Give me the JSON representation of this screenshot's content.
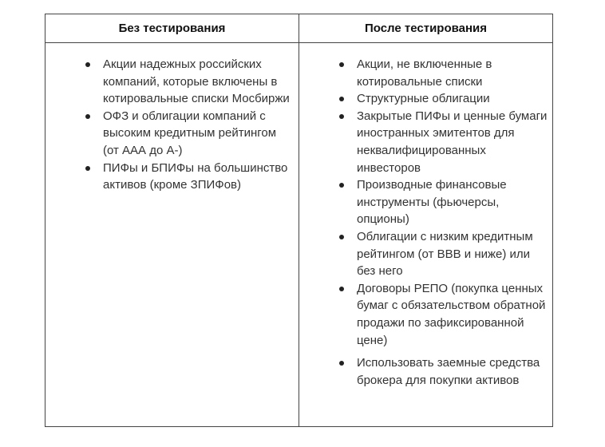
{
  "table": {
    "headers": [
      "Без тестирования",
      "После тестирования"
    ],
    "left_items": [
      "Акции надежных российских компаний, которые включены в котировальные списки Мосбиржи",
      "ОФЗ и облигации компаний с высоким кредитным рейтингом (от ААА до А-)",
      "ПИФы и БПИФы на большинство активов (кроме ЗПИФов)"
    ],
    "right_items": [
      "Акции, не включенные в котировальные списки",
      "Структурные облигации",
      "Закрытые ПИФы и ценные бумаги иностранных эмитентов для неквалифицированных инвесторов",
      "Производные финансовые инструменты (фьючерсы, опционы)",
      "Облигации с низким кредитным рейтингом (от ВВВ и ниже) или без него",
      "Договоры РЕПО (покупка ценных бумаг с обязательством обратной продажи по зафиксированной цене)",
      "Использовать заемные средства брокера для покупки активов"
    ]
  }
}
